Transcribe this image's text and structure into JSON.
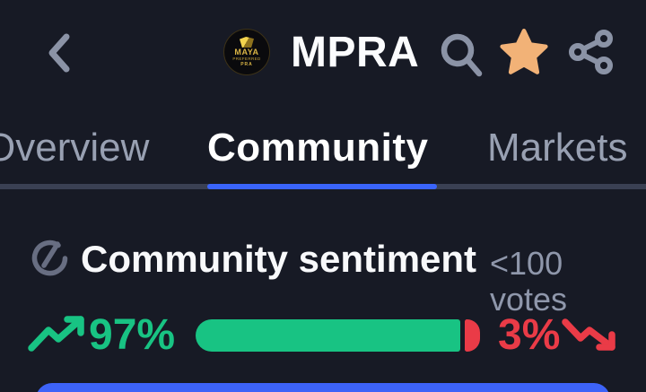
{
  "header": {
    "title": "MPRA",
    "logo": {
      "line1": "MAYA",
      "line2": "PREFERRED",
      "line3": "PRA"
    }
  },
  "tabs": {
    "items": [
      {
        "label": "Overview",
        "active": false
      },
      {
        "label": "Community",
        "active": true
      },
      {
        "label": "Markets",
        "active": false
      }
    ]
  },
  "sentiment": {
    "title": "Community sentiment",
    "votes_label": "<100 votes",
    "bullish_label": "97%",
    "bearish_label": "3%",
    "bullish_value": 97,
    "bearish_value": 3
  },
  "colors": {
    "background": "#171a25",
    "accent_blue": "#3a64fb",
    "bullish_green": "#18c383",
    "bearish_red": "#ea3b47",
    "star_gold": "#f2b277",
    "icon_gray": "#8b93a6",
    "inactive_tab": "#98a0b2"
  }
}
